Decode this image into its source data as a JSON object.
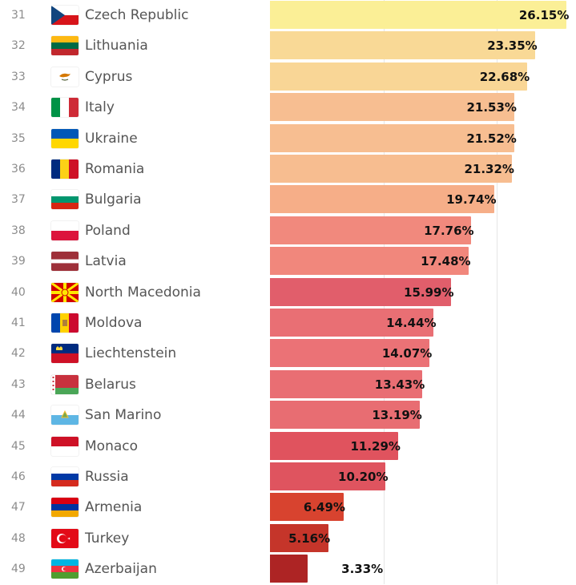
{
  "chart_data": {
    "type": "bar",
    "orientation": "horizontal",
    "x_axis_label": "",
    "y_axis_label": "",
    "categories": [
      "Czech Republic",
      "Lithuania",
      "Cyprus",
      "Italy",
      "Ukraine",
      "Romania",
      "Bulgaria",
      "Poland",
      "Latvia",
      "North Macedonia",
      "Moldova",
      "Liechtenstein",
      "Belarus",
      "San Marino",
      "Monaco",
      "Russia",
      "Armenia",
      "Turkey",
      "Azerbaijan"
    ],
    "ranks": [
      "31",
      "32",
      "33",
      "34",
      "35",
      "36",
      "37",
      "38",
      "39",
      "40",
      "41",
      "42",
      "43",
      "44",
      "45",
      "46",
      "47",
      "48",
      "49"
    ],
    "values": [
      26.15,
      23.35,
      22.68,
      21.53,
      21.52,
      21.32,
      19.74,
      17.76,
      17.48,
      15.99,
      14.44,
      14.07,
      13.43,
      13.19,
      11.29,
      10.2,
      6.49,
      5.16,
      3.33
    ],
    "value_labels": [
      "26.15%",
      "23.35%",
      "22.68%",
      "21.53%",
      "21.52%",
      "21.32%",
      "19.74%",
      "17.76%",
      "17.48%",
      "15.99%",
      "14.44%",
      "14.07%",
      "13.43%",
      "13.19%",
      "11.29%",
      "10.20%",
      "6.49%",
      "5.16%",
      "3.33%"
    ],
    "bar_colors": [
      "#fbef96",
      "#f9d996",
      "#f9d696",
      "#f7be91",
      "#f7be91",
      "#f7bd90",
      "#f6ae88",
      "#f1897d",
      "#f1877c",
      "#e15e6b",
      "#e96f74",
      "#eb7276",
      "#e96e73",
      "#e86d72",
      "#e0535e",
      "#df545f",
      "#d8432f",
      "#c5352a",
      "#ad2424"
    ],
    "flags": [
      "czech-republic-flag-icon",
      "lithuania-flag-icon",
      "cyprus-flag-icon",
      "italy-flag-icon",
      "ukraine-flag-icon",
      "romania-flag-icon",
      "bulgaria-flag-icon",
      "poland-flag-icon",
      "latvia-flag-icon",
      "north-macedonia-flag-icon",
      "moldova-flag-icon",
      "liechtenstein-flag-icon",
      "belarus-flag-icon",
      "san-marino-flag-icon",
      "monaco-flag-icon",
      "russia-flag-icon",
      "armenia-flag-icon",
      "turkey-flag-icon",
      "azerbaijan-flag-icon"
    ],
    "xlim": [
      0,
      27
    ],
    "grid": true
  }
}
